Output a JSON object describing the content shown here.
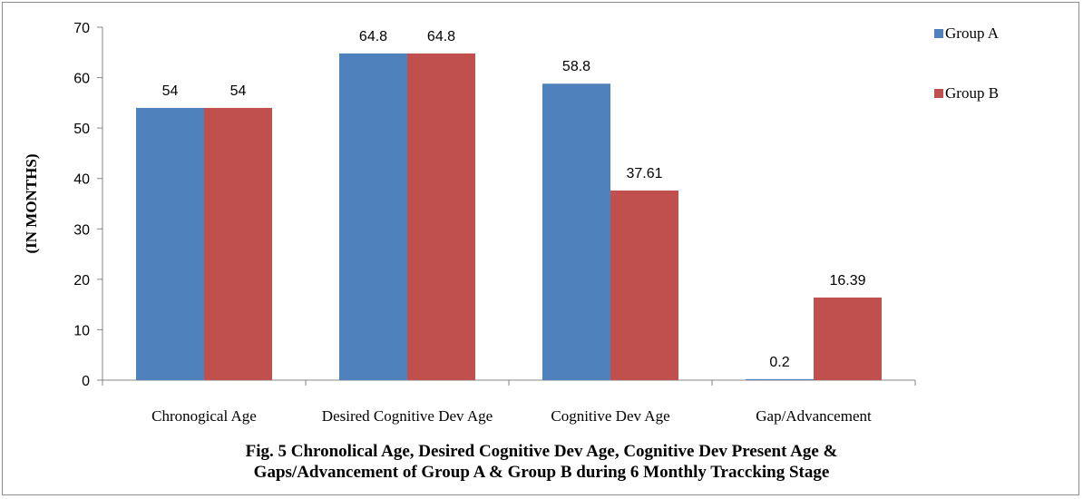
{
  "chart_data": {
    "type": "bar",
    "categories": [
      "Chronogical Age",
      "Desired Cognitive  Dev Age",
      "Cognitive Dev Age",
      "Gap/Advancement"
    ],
    "series": [
      {
        "name": "Group A",
        "color": "#4f81bd",
        "values": [
          54,
          64.8,
          58.8,
          0.2
        ],
        "labels": [
          "54",
          "64.8",
          "58.8",
          "0.2"
        ]
      },
      {
        "name": "Group B",
        "color": "#c0504d",
        "values": [
          54,
          64.8,
          37.61,
          16.39
        ],
        "labels": [
          "54",
          "64.8",
          "37.61",
          "16.39"
        ]
      }
    ],
    "ylabel": "(IN MONTHS)",
    "xlabel": "",
    "ylim": [
      0,
      70
    ],
    "yticks": [
      0,
      10,
      20,
      30,
      40,
      50,
      60,
      70
    ],
    "grid": false,
    "legend_position": "top-right"
  },
  "caption": {
    "line1": "Fig. 5  Chronolical Age, Desired  Cognitive Dev Age, Cognitive Dev Present Age &",
    "line2": "Gaps/Advancement of Group  A & Group  B during 6 Monthly Traccking  Stage"
  }
}
